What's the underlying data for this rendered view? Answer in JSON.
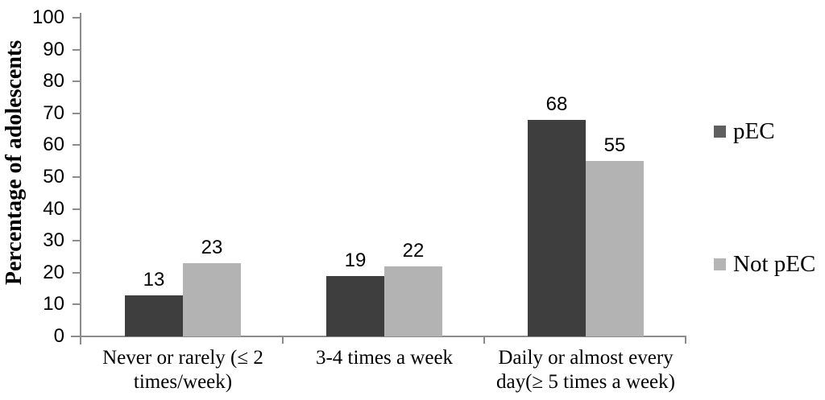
{
  "chart_data": {
    "type": "bar",
    "title": "",
    "ylabel": "Percentage of adolescents",
    "xlabel": "",
    "ylim": [
      0,
      100
    ],
    "yticks": [
      0,
      10,
      20,
      30,
      40,
      50,
      60,
      70,
      80,
      90,
      100
    ],
    "grid": false,
    "legend_position": "right",
    "data_labels_shown": true,
    "categories": [
      "Never or rarely (≤ 2 times/week)",
      "3-4 times a week",
      "Daily or almost every day(≥ 5 times a week)"
    ],
    "category_label_lines": [
      [
        "Never or rarely (≤ 2",
        "times/week)"
      ],
      [
        "3-4 times a week"
      ],
      [
        "Daily or almost every",
        "day(≥ 5 times a week)"
      ]
    ],
    "series": [
      {
        "name": "pEC",
        "color": "#3E3E3E",
        "legend_swatch_color": "#5F5F5F",
        "values": [
          13,
          19,
          68
        ]
      },
      {
        "name": "Not pEC",
        "color": "#B3B3B3",
        "legend_swatch_color": "#B5B5B5",
        "values": [
          23,
          22,
          55
        ]
      }
    ]
  },
  "colors": {
    "axis": "#8C8C8C",
    "text": "#000000",
    "background": "#FFFFFF"
  }
}
